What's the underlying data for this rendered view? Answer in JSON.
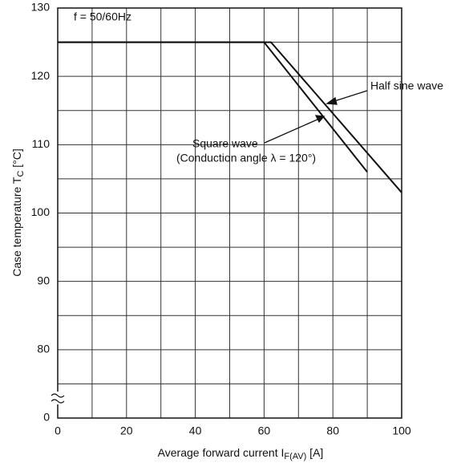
{
  "chart_data": {
    "type": "line",
    "annotations": [
      "f = 50/60Hz",
      "Half sine wave",
      "Square wave",
      "(Conduction angle  λ = 120°)"
    ],
    "xlabel": {
      "text": "Average forward current I",
      "sub": "F(AV)",
      "unit": " [A]"
    },
    "ylabel": {
      "text": "Case temperature T",
      "sub": "C",
      "unit": " [°C]"
    },
    "xlim": [
      0,
      100
    ],
    "xticks": [
      0,
      20,
      40,
      60,
      80,
      100
    ],
    "ylim": [
      0,
      130
    ],
    "yticks": [
      0,
      80,
      90,
      100,
      110,
      120,
      130
    ],
    "y_break": true,
    "grid": true,
    "series": [
      {
        "name": "Half sine wave",
        "color": "#111111",
        "x": [
          0,
          62,
          100
        ],
        "values": [
          125,
          125,
          103
        ]
      },
      {
        "name": "Square wave",
        "color": "#111111",
        "x": [
          0,
          60,
          90
        ],
        "values": [
          125,
          125,
          106
        ]
      }
    ]
  }
}
